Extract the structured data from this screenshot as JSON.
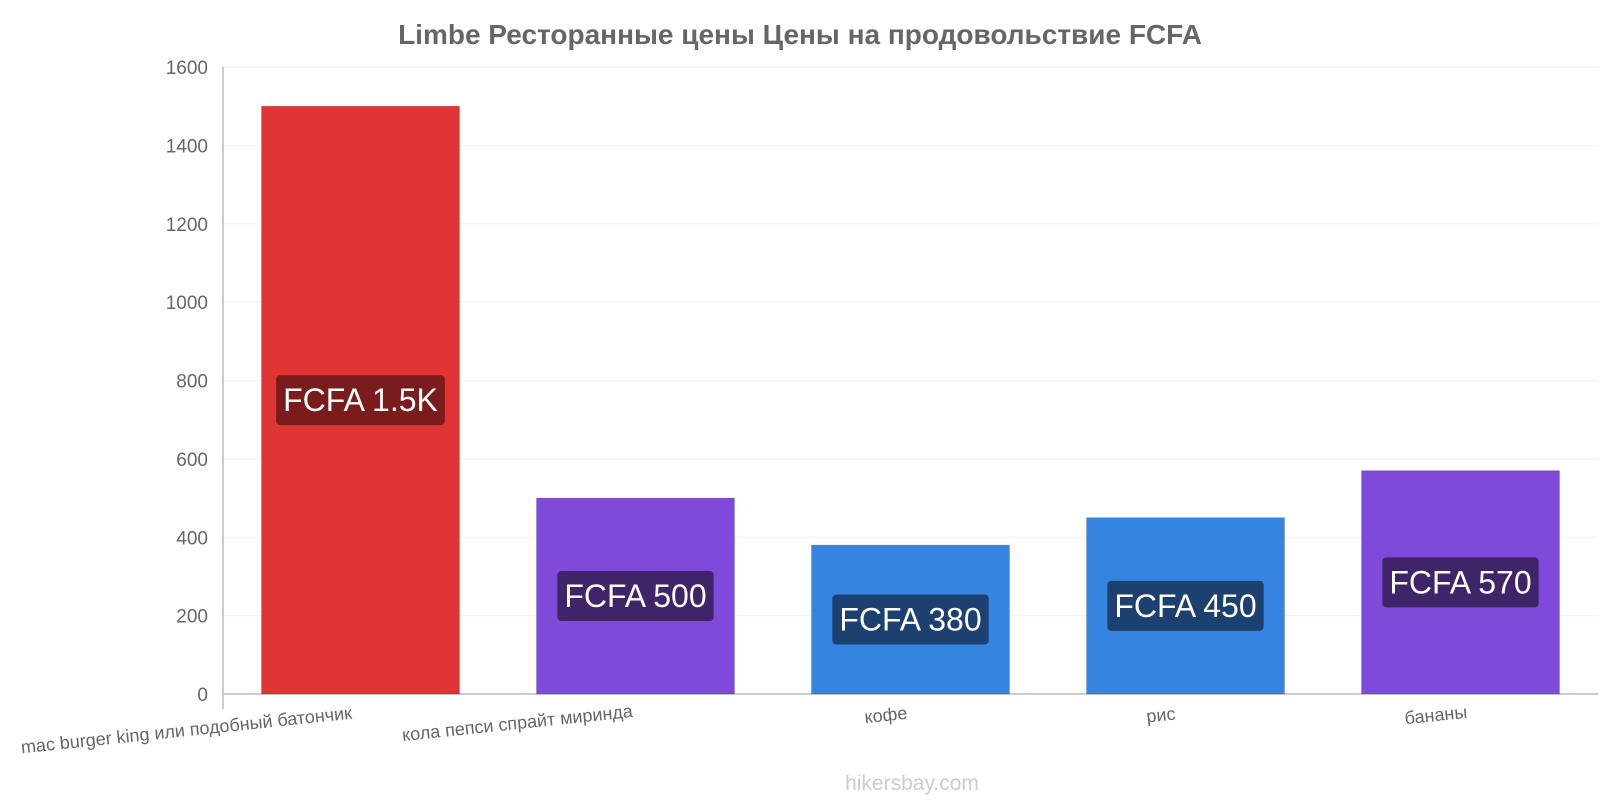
{
  "chart_data": {
    "type": "bar",
    "title": "Limbe Ресторанные цены Цены на продовольствие FCFA",
    "categories": [
      "mac burger king или подобный батончик",
      "кола пепси спрайт миринда",
      "кофе",
      "рис",
      "бананы"
    ],
    "values": [
      1500,
      500,
      380,
      450,
      570
    ],
    "data_labels": [
      "FCFA 1.5K",
      "FCFA 500",
      "FCFA 380",
      "FCFA 450",
      "FCFA 570"
    ],
    "ylim": [
      0,
      1600
    ],
    "yticks": [
      0,
      200,
      400,
      600,
      800,
      1000,
      1200,
      1400,
      1600
    ],
    "grid": true,
    "colors": [
      "#e03535",
      "#7f4ad9",
      "#3584e0",
      "#3584e0",
      "#7f4ad9"
    ],
    "label_bg_colors": [
      "#7a1c1c",
      "#3f2469",
      "#1c4070",
      "#1c4070",
      "#3f2469"
    ]
  },
  "watermark": "hikersbay.com"
}
